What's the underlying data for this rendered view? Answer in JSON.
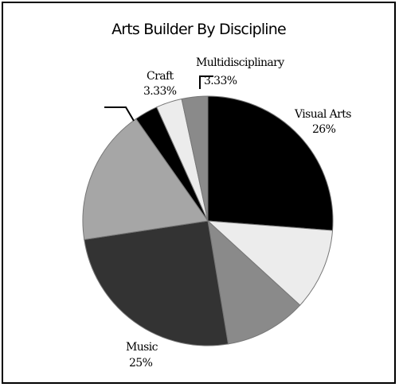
{
  "chart_data": {
    "type": "pie",
    "title": "Arts Builder By Discipline",
    "start_angle_deg": 0,
    "direction": "clockwise",
    "slices": [
      {
        "label": "Visual Arts",
        "value_label": "26%",
        "value": 26.0,
        "color": "#000000"
      },
      {
        "label": "",
        "value_label": "",
        "value": 10.5,
        "color": "#ececec"
      },
      {
        "label": "",
        "value_label": "",
        "value": 10.5,
        "color": "#8a8a8a"
      },
      {
        "label": "Music",
        "value_label": "25%",
        "value": 25.0,
        "color": "#333333"
      },
      {
        "label": "",
        "value_label": "",
        "value": 17.5,
        "color": "#a6a6a6"
      },
      {
        "label": "",
        "value_label": "",
        "value": 3.0,
        "color": "#000000"
      },
      {
        "label": "Craft",
        "value_label": "3.33%",
        "value": 3.33,
        "color": "#ececec"
      },
      {
        "label": "Multidisciplinary",
        "value_label": "3.33%",
        "value": 3.33,
        "color": "#8a8a8a"
      }
    ]
  }
}
